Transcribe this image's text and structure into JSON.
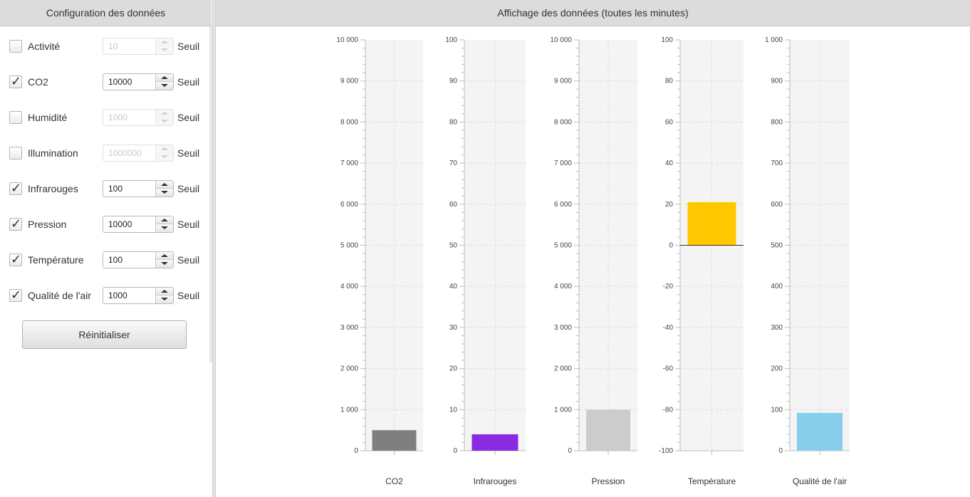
{
  "config": {
    "header": "Configuration des données",
    "seuil_label": "Seuil",
    "reset_label": "Réinitialiser",
    "rows": [
      {
        "label": "Activité",
        "checked": false,
        "value": "10"
      },
      {
        "label": "CO2",
        "checked": true,
        "value": "10000"
      },
      {
        "label": "Humidité",
        "checked": false,
        "value": "1000"
      },
      {
        "label": "Illumination",
        "checked": false,
        "value": "1000000"
      },
      {
        "label": "Infrarouges",
        "checked": true,
        "value": "100"
      },
      {
        "label": "Pression",
        "checked": true,
        "value": "10000"
      },
      {
        "label": "Température",
        "checked": true,
        "value": "100"
      },
      {
        "label": "Qualité de l'air",
        "checked": true,
        "value": "1000"
      }
    ]
  },
  "display": {
    "header": "Affichage des données (toutes les minutes)"
  },
  "chart_data": [
    {
      "type": "bar",
      "categories": [
        "CO2"
      ],
      "values": [
        500
      ],
      "ylim": [
        0,
        10000
      ],
      "yticks": [
        "0",
        "1 000",
        "2 000",
        "3 000",
        "4 000",
        "5 000",
        "6 000",
        "7 000",
        "8 000",
        "9 000",
        "10 000"
      ],
      "color": "#7f7f7f",
      "grid": true
    },
    {
      "type": "bar",
      "categories": [
        "Infrarouges"
      ],
      "values": [
        4
      ],
      "ylim": [
        0,
        100
      ],
      "yticks": [
        "0",
        "10",
        "20",
        "30",
        "40",
        "50",
        "60",
        "70",
        "80",
        "90",
        "100"
      ],
      "color": "#8a2be2",
      "grid": true
    },
    {
      "type": "bar",
      "categories": [
        "Pression"
      ],
      "values": [
        1000
      ],
      "ylim": [
        0,
        10000
      ],
      "yticks": [
        "0",
        "1 000",
        "2 000",
        "3 000",
        "4 000",
        "5 000",
        "6 000",
        "7 000",
        "8 000",
        "9 000",
        "10 000"
      ],
      "color": "#cccccc",
      "grid": true
    },
    {
      "type": "bar",
      "categories": [
        "Température"
      ],
      "values": [
        21
      ],
      "ylim": [
        -100,
        100
      ],
      "yticks": [
        "-100",
        "-80",
        "-60",
        "-40",
        "-20",
        "0",
        "20",
        "40",
        "60",
        "80",
        "100"
      ],
      "color": "#ffc800",
      "grid": true
    },
    {
      "type": "bar",
      "categories": [
        "Qualité de l'air"
      ],
      "values": [
        92
      ],
      "ylim": [
        0,
        1000
      ],
      "yticks": [
        "0",
        "100",
        "200",
        "300",
        "400",
        "500",
        "600",
        "700",
        "800",
        "900",
        "1 000"
      ],
      "color": "#87ceeb",
      "grid": true
    }
  ]
}
